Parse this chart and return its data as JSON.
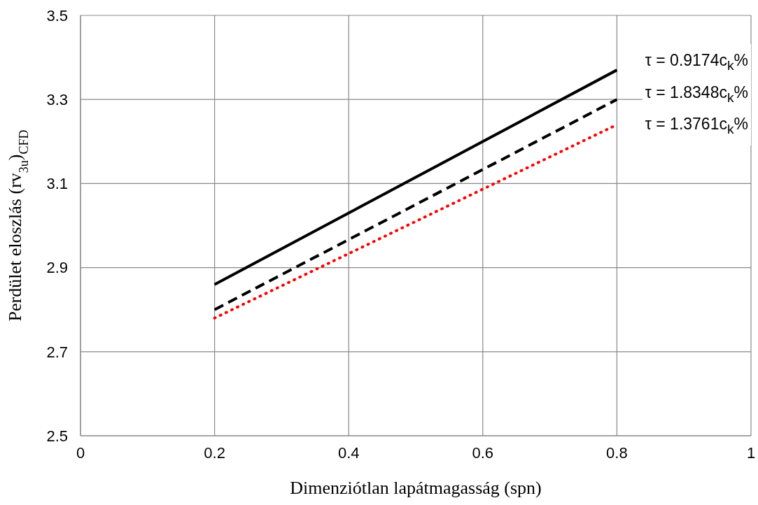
{
  "chart_data": {
    "type": "line",
    "xlabel": "Dimenziótlan lapátmagasság (spn)",
    "ylabel": "Perdület eloszlás (rv$_{3u}$)$_{CFD}$",
    "xlim": [
      0,
      1
    ],
    "xticks": [
      0,
      0.2,
      0.4,
      0.6,
      0.8,
      1
    ],
    "ylim": [
      2.5,
      3.5
    ],
    "yticks": [
      2.5,
      2.7,
      2.9,
      3.1,
      3.3,
      3.5
    ],
    "grid": true,
    "legend": "top right",
    "marker": "none",
    "x": [
      0.2,
      0.8
    ],
    "series": [
      {
        "name": "τ = 0.9174c$_{k}$%",
        "color": "#000000",
        "line_style": "solid",
        "values": [
          2.86,
          3.37
        ]
      },
      {
        "name": "τ = 1.8348c$_{k}$%",
        "color": "#000000",
        "line_style": "dashed",
        "values": [
          2.8,
          3.3
        ]
      },
      {
        "name": "τ = 1.3761c$_{k}$%",
        "color": "#ff0000",
        "line_style": "dotted",
        "values": [
          2.78,
          3.24
        ]
      }
    ]
  }
}
